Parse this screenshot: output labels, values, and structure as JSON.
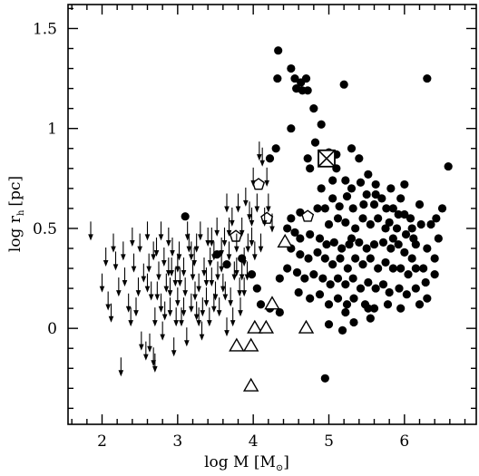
{
  "chart_data": {
    "type": "scatter",
    "xlabel": "log M [M",
    "xlabel_unit_symbol": "⊙",
    "xlabel_close": "]",
    "ylabel": "log r",
    "ylabel_sub": "h",
    "ylabel_unit": "[pc]",
    "xlim": [
      1.55,
      6.95
    ],
    "ylim": [
      -0.48,
      1.62
    ],
    "x_ticks": [
      2,
      3,
      4,
      5,
      6
    ],
    "x_tick_labels": [
      "2",
      "3",
      "4",
      "5",
      "6"
    ],
    "y_ticks": [
      0,
      0.5,
      1,
      1.5
    ],
    "y_tick_labels": [
      "0",
      "0.5",
      "1",
      "1.5"
    ],
    "grid": false,
    "legend": "none",
    "series": [
      {
        "marker": "filled-circle",
        "points": [
          [
            4.33,
            1.39
          ],
          [
            4.5,
            1.3
          ],
          [
            4.55,
            1.25
          ],
          [
            4.7,
            1.25
          ],
          [
            4.63,
            1.23
          ],
          [
            4.32,
            1.25
          ],
          [
            5.2,
            1.22
          ],
          [
            6.3,
            1.25
          ],
          [
            4.57,
            1.2
          ],
          [
            4.65,
            1.19
          ],
          [
            4.72,
            1.19
          ],
          [
            4.8,
            1.1
          ],
          [
            4.9,
            1.02
          ],
          [
            4.5,
            1.0
          ],
          [
            4.82,
            0.93
          ],
          [
            5.0,
            0.88
          ],
          [
            5.1,
            0.87
          ],
          [
            5.3,
            0.9
          ],
          [
            5.4,
            0.85
          ],
          [
            4.3,
            0.9
          ],
          [
            4.72,
            0.85
          ],
          [
            4.22,
            0.85
          ],
          [
            4.75,
            0.8
          ],
          [
            6.58,
            0.81
          ],
          [
            5.1,
            0.8
          ],
          [
            5.22,
            0.74
          ],
          [
            5.42,
            0.73
          ],
          [
            5.3,
            0.7
          ],
          [
            5.52,
            0.77
          ],
          [
            5.62,
            0.72
          ],
          [
            5.82,
            0.7
          ],
          [
            5.95,
            0.65
          ],
          [
            6.0,
            0.72
          ],
          [
            6.2,
            0.62
          ],
          [
            6.42,
            0.55
          ],
          [
            6.5,
            0.6
          ],
          [
            5.05,
            0.65
          ],
          [
            5.14,
            0.61
          ],
          [
            5.24,
            0.66
          ],
          [
            5.32,
            0.6
          ],
          [
            5.5,
            0.67
          ],
          [
            5.6,
            0.62
          ],
          [
            5.7,
            0.65
          ],
          [
            5.85,
            0.6
          ],
          [
            5.92,
            0.57
          ],
          [
            6.08,
            0.55
          ],
          [
            6.1,
            0.5
          ],
          [
            6.22,
            0.52
          ],
          [
            6.35,
            0.52
          ],
          [
            4.85,
            0.6
          ],
          [
            4.95,
            0.6
          ],
          [
            5.0,
            0.52
          ],
          [
            5.12,
            0.55
          ],
          [
            5.22,
            0.53
          ],
          [
            5.35,
            0.5
          ],
          [
            5.45,
            0.55
          ],
          [
            5.55,
            0.52
          ],
          [
            5.65,
            0.55
          ],
          [
            5.75,
            0.5
          ],
          [
            5.8,
            0.53
          ],
          [
            5.9,
            0.5
          ],
          [
            6.02,
            0.47
          ],
          [
            6.12,
            0.45
          ],
          [
            6.3,
            0.4
          ],
          [
            6.45,
            0.45
          ],
          [
            4.55,
            0.48
          ],
          [
            4.62,
            0.45
          ],
          [
            4.75,
            0.47
          ],
          [
            4.88,
            0.45
          ],
          [
            4.97,
            0.42
          ],
          [
            5.07,
            0.43
          ],
          [
            5.17,
            0.4
          ],
          [
            5.27,
            0.42
          ],
          [
            5.4,
            0.43
          ],
          [
            5.5,
            0.4
          ],
          [
            5.6,
            0.42
          ],
          [
            5.72,
            0.43
          ],
          [
            5.82,
            0.4
          ],
          [
            5.92,
            0.42
          ],
          [
            6.0,
            0.38
          ],
          [
            6.1,
            0.35
          ],
          [
            6.25,
            0.3
          ],
          [
            6.4,
            0.35
          ],
          [
            4.5,
            0.4
          ],
          [
            4.62,
            0.37
          ],
          [
            4.73,
            0.35
          ],
          [
            4.85,
            0.38
          ],
          [
            4.95,
            0.35
          ],
          [
            5.05,
            0.32
          ],
          [
            5.15,
            0.35
          ],
          [
            5.25,
            0.3
          ],
          [
            5.35,
            0.35
          ],
          [
            5.45,
            0.32
          ],
          [
            5.55,
            0.35
          ],
          [
            5.65,
            0.3
          ],
          [
            5.75,
            0.33
          ],
          [
            5.85,
            0.3
          ],
          [
            5.95,
            0.3
          ],
          [
            6.05,
            0.27
          ],
          [
            6.15,
            0.3
          ],
          [
            6.28,
            0.23
          ],
          [
            6.4,
            0.27
          ],
          [
            4.45,
            0.3
          ],
          [
            4.58,
            0.28
          ],
          [
            4.68,
            0.25
          ],
          [
            4.8,
            0.27
          ],
          [
            4.92,
            0.25
          ],
          [
            5.02,
            0.22
          ],
          [
            5.12,
            0.25
          ],
          [
            5.22,
            0.22
          ],
          [
            5.32,
            0.25
          ],
          [
            5.42,
            0.2
          ],
          [
            5.52,
            0.23
          ],
          [
            5.62,
            0.2
          ],
          [
            5.72,
            0.22
          ],
          [
            5.8,
            0.18
          ],
          [
            5.93,
            0.2
          ],
          [
            6.03,
            0.17
          ],
          [
            6.15,
            0.2
          ],
          [
            6.3,
            0.15
          ],
          [
            4.6,
            0.18
          ],
          [
            4.75,
            0.15
          ],
          [
            4.88,
            0.17
          ],
          [
            5.0,
            0.12
          ],
          [
            5.12,
            0.15
          ],
          [
            5.24,
            0.12
          ],
          [
            5.33,
            0.15
          ],
          [
            5.48,
            0.12
          ],
          [
            5.6,
            0.1
          ],
          [
            5.78,
            0.12
          ],
          [
            5.95,
            0.1
          ],
          [
            6.2,
            0.12
          ],
          [
            4.22,
            0.1
          ],
          [
            4.35,
            0.08
          ],
          [
            5.22,
            0.08
          ],
          [
            5.52,
            0.1
          ],
          [
            5.55,
            0.05
          ],
          [
            5.0,
            0.02
          ],
          [
            5.33,
            0.03
          ],
          [
            5.18,
            -0.01
          ],
          [
            4.35,
            0.25
          ],
          [
            4.05,
            0.2
          ],
          [
            4.1,
            0.12
          ],
          [
            3.98,
            0.27
          ],
          [
            3.65,
            0.32
          ],
          [
            3.52,
            0.37
          ],
          [
            3.85,
            0.35
          ],
          [
            4.95,
            -0.25
          ],
          [
            3.1,
            0.56
          ],
          [
            4.45,
            0.5
          ],
          [
            4.5,
            0.55
          ],
          [
            4.62,
            0.58
          ],
          [
            4.9,
            0.7
          ],
          [
            5.05,
            0.74
          ],
          [
            5.62,
            0.67
          ],
          [
            5.85,
            0.45
          ],
          [
            6.0,
            0.57
          ],
          [
            5.3,
            0.45
          ],
          [
            5.46,
            0.62
          ],
          [
            5.76,
            0.6
          ],
          [
            6.15,
            0.42
          ]
        ]
      },
      {
        "marker": "open-triangle",
        "points": [
          [
            4.42,
            0.43
          ],
          [
            4.25,
            0.12
          ],
          [
            4.02,
            0.0
          ],
          [
            4.7,
            0.0
          ],
          [
            4.17,
            0.0
          ],
          [
            3.78,
            -0.09
          ],
          [
            3.97,
            -0.09
          ],
          [
            3.97,
            -0.29
          ]
        ]
      },
      {
        "marker": "open-pentagon",
        "points": [
          [
            4.07,
            0.72
          ],
          [
            4.18,
            0.55
          ],
          [
            4.72,
            0.56
          ],
          [
            3.77,
            0.46
          ]
        ]
      },
      {
        "marker": "boxed-x",
        "points": [
          [
            4.97,
            0.85
          ]
        ]
      },
      {
        "marker": "downward-arrow-upper-limit",
        "points": [
          [
            1.85,
            0.48
          ],
          [
            2.0,
            0.22
          ],
          [
            2.08,
            0.13
          ],
          [
            2.12,
            0.07
          ],
          [
            2.18,
            0.33
          ],
          [
            2.22,
            0.2
          ],
          [
            2.25,
            -0.2
          ],
          [
            2.3,
            0.25
          ],
          [
            2.35,
            0.12
          ],
          [
            2.4,
            0.45
          ],
          [
            2.42,
            0.32
          ],
          [
            2.45,
            0.1
          ],
          [
            2.48,
            0.2
          ],
          [
            2.52,
            -0.07
          ],
          [
            2.55,
            0.27
          ],
          [
            2.58,
            -0.12
          ],
          [
            2.62,
            0.32
          ],
          [
            2.65,
            0.18
          ],
          [
            2.68,
            -0.15
          ],
          [
            2.7,
            0.05
          ],
          [
            2.72,
            0.4
          ],
          [
            2.75,
            0.28
          ],
          [
            2.78,
            0.12
          ],
          [
            2.8,
            -0.02
          ],
          [
            2.82,
            0.35
          ],
          [
            2.85,
            0.22
          ],
          [
            2.88,
            0.45
          ],
          [
            2.9,
            0.1
          ],
          [
            2.92,
            0.3
          ],
          [
            2.95,
            -0.1
          ],
          [
            2.97,
            0.25
          ],
          [
            3.0,
            0.15
          ],
          [
            3.02,
            0.38
          ],
          [
            3.05,
            0.05
          ],
          [
            3.08,
            0.3
          ],
          [
            3.1,
            0.2
          ],
          [
            3.12,
            -0.05
          ],
          [
            3.15,
            0.42
          ],
          [
            3.18,
            0.12
          ],
          [
            3.2,
            0.28
          ],
          [
            3.22,
            0.35
          ],
          [
            3.25,
            0.08
          ],
          [
            3.28,
            0.22
          ],
          [
            3.3,
            0.48
          ],
          [
            3.32,
            -0.02
          ],
          [
            3.35,
            0.3
          ],
          [
            3.38,
            0.15
          ],
          [
            3.4,
            0.45
          ],
          [
            3.42,
            0.05
          ],
          [
            3.45,
            0.25
          ],
          [
            3.48,
            0.38
          ],
          [
            3.5,
            0.18
          ],
          [
            3.52,
            0.5
          ],
          [
            3.55,
            0.1
          ],
          [
            3.58,
            0.32
          ],
          [
            3.6,
            0.22
          ],
          [
            3.62,
            0.45
          ],
          [
            3.65,
            0.0
          ],
          [
            3.68,
            0.38
          ],
          [
            3.7,
            0.15
          ],
          [
            3.72,
            0.55
          ],
          [
            3.75,
            0.28
          ],
          [
            3.78,
            0.42
          ],
          [
            3.8,
            0.62
          ],
          [
            3.82,
            0.2
          ],
          [
            3.85,
            0.5
          ],
          [
            3.88,
            0.35
          ],
          [
            3.9,
            0.65
          ],
          [
            3.92,
            0.28
          ],
          [
            3.95,
            0.58
          ],
          [
            3.98,
            0.45
          ],
          [
            4.0,
            0.75
          ],
          [
            4.02,
            0.38
          ],
          [
            4.05,
            0.62
          ],
          [
            4.08,
            0.88
          ],
          [
            4.12,
            0.85
          ],
          [
            4.15,
            0.55
          ],
          [
            4.18,
            0.75
          ],
          [
            4.2,
            0.62
          ],
          [
            4.25,
            0.52
          ],
          [
            2.05,
            0.35
          ],
          [
            2.15,
            0.42
          ],
          [
            2.28,
            0.38
          ],
          [
            2.38,
            0.05
          ],
          [
            2.5,
            0.42
          ],
          [
            2.6,
            0.48
          ],
          [
            2.63,
            -0.08
          ],
          [
            2.73,
            0.18
          ],
          [
            2.83,
            0.08
          ],
          [
            2.93,
            0.4
          ],
          [
            3.03,
            0.25
          ],
          [
            3.13,
            0.48
          ],
          [
            3.23,
            0.18
          ],
          [
            3.33,
            0.1
          ],
          [
            3.43,
            0.35
          ],
          [
            3.53,
            0.28
          ],
          [
            3.63,
            0.18
          ],
          [
            3.73,
            0.05
          ],
          [
            3.83,
            0.1
          ],
          [
            3.93,
            0.42
          ],
          [
            2.68,
            0.38
          ],
          [
            2.78,
            0.48
          ],
          [
            2.88,
            0.3
          ],
          [
            2.98,
            0.05
          ],
          [
            3.08,
            0.1
          ],
          [
            3.18,
            0.38
          ],
          [
            3.28,
            0.05
          ],
          [
            3.38,
            0.25
          ],
          [
            3.48,
            0.12
          ],
          [
            3.58,
            0.4
          ],
          [
            3.68,
            0.5
          ],
          [
            3.78,
            0.3
          ],
          [
            3.88,
            0.2
          ],
          [
            3.98,
            0.55
          ],
          [
            2.6,
            0.22
          ],
          [
            2.7,
            -0.18
          ],
          [
            2.9,
            0.2
          ],
          [
            3.0,
            0.32
          ],
          [
            3.25,
            0.42
          ],
          [
            3.45,
            0.45
          ],
          [
            3.65,
            0.62
          ],
          [
            3.85,
            0.28
          ],
          [
            4.1,
            0.42
          ]
        ]
      }
    ]
  }
}
